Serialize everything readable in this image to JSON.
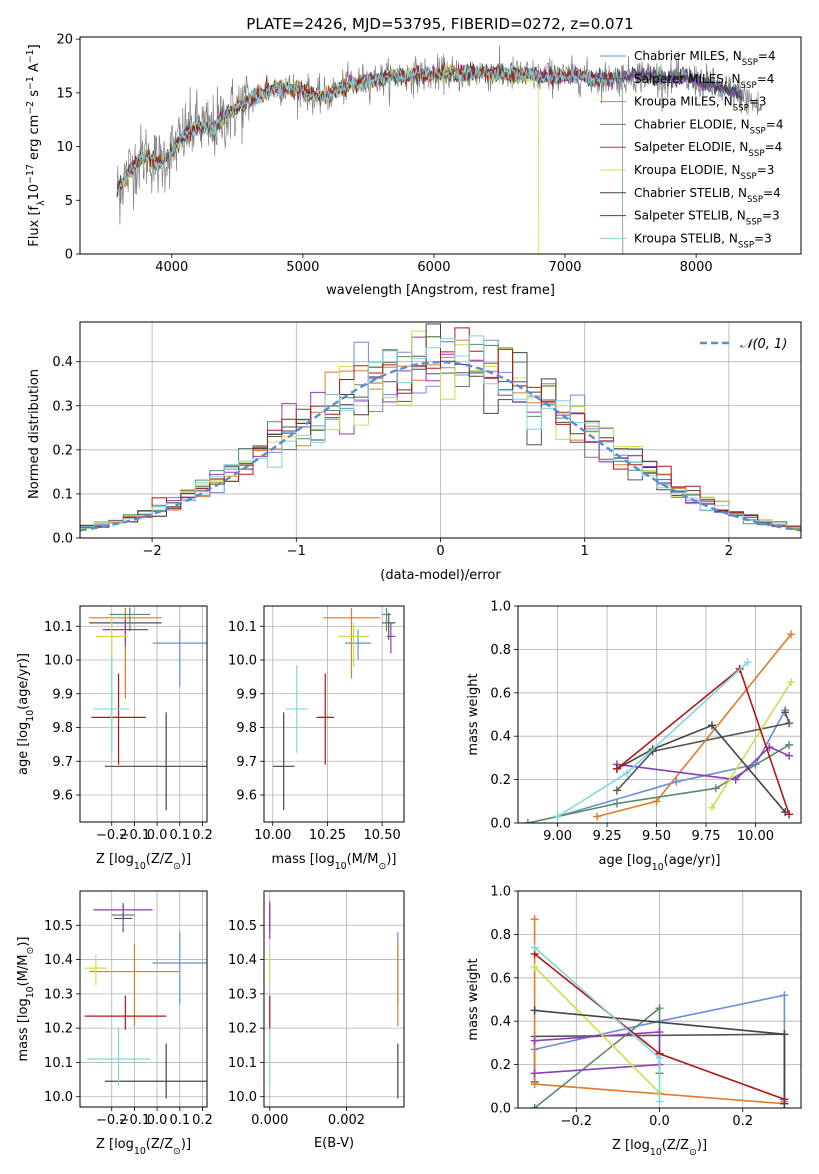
{
  "figure_title": "PLATE=2426, MJD=53795, FIBERID=0272, z=0.071",
  "models": [
    {
      "name": "Chabrier MILES, N$_{SSP}$=4",
      "label_main": "Chabrier MILES, N",
      "label_sub": "SSP",
      "label_tail": "=4",
      "color": "#6a8fd8"
    },
    {
      "name": "Salpeter MILES, N$_{SSP}$=4",
      "label_main": "Salpeter MILES, N",
      "label_sub": "SSP",
      "label_tail": "=4",
      "color": "#555555"
    },
    {
      "name": "Kroupa MILES, N$_{SSP}$=3",
      "label_main": "Kroupa MILES, N",
      "label_sub": "SSP",
      "label_tail": "=3",
      "color": "#e07b2a"
    },
    {
      "name": "Chabrier ELODIE, N$_{SSP}$=4",
      "label_main": "Chabrier ELODIE, N",
      "label_sub": "SSP",
      "label_tail": "=4",
      "color": "#5a8a6a"
    },
    {
      "name": "Salpeter ELODIE, N$_{SSP}$=4",
      "label_main": "Salpeter ELODIE, N",
      "label_sub": "SSP",
      "label_tail": "=4",
      "color": "#8e3fb5"
    },
    {
      "name": "Kroupa ELODIE, N$_{SSP}$=3",
      "label_main": "Kroupa ELODIE, N",
      "label_sub": "SSP",
      "label_tail": "=3",
      "color": "#c9e04a"
    },
    {
      "name": "Chabrier STELIB, N$_{SSP}$=4",
      "label_main": "Chabrier STELIB, N",
      "label_sub": "SSP",
      "label_tail": "=4",
      "color": "#444444"
    },
    {
      "name": "Salpeter STELIB, N$_{SSP}$=3",
      "label_main": "Salpeter STELIB, N",
      "label_sub": "SSP",
      "label_tail": "=3",
      "color": "#b01818"
    },
    {
      "name": "Kroupa STELIB, N$_{SSP}$=3",
      "label_main": "Kroupa STELIB, N",
      "label_sub": "SSP",
      "label_tail": "=3",
      "color": "#7fd6dc"
    }
  ],
  "chart_data": [
    {
      "id": "spectrum",
      "type": "line",
      "xlabel": "wavelength [Angstrom, rest frame]",
      "ylabel": "Flux [f$_\\lambda$10$^{-17}$ erg cm$^{-2}$ s$^{-1}$ A$^{-1}$]",
      "ylabel_parts": [
        "Flux [f",
        "λ",
        "10",
        "−17",
        " erg cm",
        "−2",
        " s",
        "−1",
        " A",
        "−1",
        "]"
      ],
      "xlim": [
        3300,
        8800
      ],
      "ylim": [
        0,
        20.2
      ],
      "xticks": [
        4000,
        5000,
        6000,
        7000,
        8000
      ],
      "yticks": [
        0,
        5,
        10,
        15,
        20
      ],
      "data_color": "#808080",
      "continuum": [
        [
          3580,
          5.8
        ],
        [
          3700,
          8.2
        ],
        [
          3800,
          9.2
        ],
        [
          3900,
          8.4
        ],
        [
          4000,
          9.5
        ],
        [
          4100,
          11.2
        ],
        [
          4200,
          12.0
        ],
        [
          4300,
          11.5
        ],
        [
          4400,
          12.8
        ],
        [
          4500,
          13.6
        ],
        [
          4600,
          14.4
        ],
        [
          4700,
          15.0
        ],
        [
          4800,
          15.6
        ],
        [
          4900,
          15.4
        ],
        [
          5000,
          15.3
        ],
        [
          5100,
          14.6
        ],
        [
          5200,
          14.8
        ],
        [
          5300,
          15.5
        ],
        [
          5400,
          15.9
        ],
        [
          5500,
          16.2
        ],
        [
          5600,
          16.3
        ],
        [
          5700,
          16.5
        ],
        [
          5800,
          16.6
        ],
        [
          5900,
          16.7
        ],
        [
          6000,
          16.7
        ],
        [
          6100,
          16.9
        ],
        [
          6200,
          16.7
        ],
        [
          6300,
          16.9
        ],
        [
          6400,
          16.8
        ],
        [
          6500,
          16.8
        ],
        [
          6600,
          16.7
        ],
        [
          6700,
          16.7
        ],
        [
          6800,
          16.5
        ],
        [
          6900,
          16.6
        ],
        [
          7000,
          16.4
        ],
        [
          7100,
          16.7
        ],
        [
          7200,
          16.3
        ],
        [
          7300,
          16.3
        ],
        [
          7400,
          16.4
        ],
        [
          7500,
          16.6
        ],
        [
          7600,
          16.7
        ],
        [
          7700,
          16.5
        ],
        [
          7800,
          16.3
        ],
        [
          7900,
          16.4
        ],
        [
          8000,
          16.1
        ],
        [
          8100,
          15.8
        ],
        [
          8200,
          15.4
        ],
        [
          8300,
          15.0
        ],
        [
          8400,
          14.4
        ],
        [
          8500,
          13.4
        ]
      ],
      "model_end_wavelength": [
        8350,
        8350,
        7440,
        8350,
        8350,
        6800,
        8350,
        7440,
        7440
      ],
      "legend": "right"
    },
    {
      "id": "residuals",
      "type": "step",
      "xlabel": "(data-model)/error",
      "ylabel": "Normed distribution",
      "xlim": [
        -2.5,
        2.5
      ],
      "ylim": [
        0,
        0.49
      ],
      "xticks": [
        -2,
        -1,
        0,
        1,
        2
      ],
      "xtick_labels": [
        "−2",
        "−1",
        "0",
        "1",
        "2"
      ],
      "yticks": [
        0.0,
        0.1,
        0.2,
        0.3,
        0.4
      ],
      "bin_width": 0.1,
      "bin_start": -2.5,
      "bins": 50,
      "normal_label": "$\\mathcal{N}(0,1)$",
      "normal_label_text": "𝒩(0, 1)",
      "normal_color": "#5b8bd5",
      "legend": "upper right"
    },
    {
      "id": "age_vs_Z",
      "type": "errorbar",
      "xlabel": "Z [log$_{10}$($Z/Z_\\odot$)]",
      "xlabel_parts": [
        "Z [log",
        "10",
        "(Z/Z",
        "⊙",
        ")]"
      ],
      "ylabel": "age  [log$_{10}$($age/yr$)]",
      "ylabel_parts": [
        "age  [log",
        "10",
        "(age/yr)]"
      ],
      "xlim": [
        -0.34,
        0.22
      ],
      "ylim": [
        9.52,
        10.16
      ],
      "xticks": [
        -0.2,
        -0.1,
        0.0,
        0.1,
        0.2
      ],
      "xtick_labels": [
        "−0.2",
        "−0.1",
        "0.0",
        "0.1",
        "0.2"
      ],
      "yticks": [
        9.6,
        9.7,
        9.8,
        9.9,
        10.0,
        10.1
      ],
      "points": [
        {
          "x": 0.1,
          "xerr": 0.12,
          "y": 10.05,
          "yerr": [
            0.13,
            0.04
          ]
        },
        {
          "x": -0.14,
          "xerr": 0.16,
          "y": 10.11,
          "yerr": [
            0.05,
            0.03
          ]
        },
        {
          "x": -0.14,
          "xerr": 0.16,
          "y": 10.125,
          "yerr": [
            0.24,
            0.03
          ]
        },
        {
          "x": -0.12,
          "xerr": 0.09,
          "y": 10.135,
          "yerr": [
            0.05,
            0.02
          ]
        },
        {
          "x": -0.14,
          "xerr": 0.1,
          "y": 10.09,
          "yerr": [
            0.05,
            0.03
          ]
        },
        {
          "x": -0.2,
          "xerr": 0.07,
          "y": 10.07,
          "yerr": [
            0.32,
            0.06
          ]
        },
        {
          "x": 0.04,
          "xerr": 0.27,
          "y": 9.685,
          "yerr": [
            0.13,
            0.16
          ]
        },
        {
          "x": -0.17,
          "xerr": 0.12,
          "y": 9.83,
          "yerr": [
            0.14,
            0.13
          ]
        },
        {
          "x": -0.2,
          "xerr": 0.08,
          "y": 9.855,
          "yerr": [
            0.13,
            0.16
          ]
        }
      ]
    },
    {
      "id": "age_vs_mass",
      "type": "errorbar",
      "xlabel": "mass [log$_{10}$($M/M_\\odot$)]",
      "xlabel_parts": [
        "mass [log",
        "10",
        "(M/M",
        "⊙",
        ")]"
      ],
      "ylabel": "",
      "xlim": [
        9.96,
        10.6
      ],
      "ylim": [
        9.52,
        10.16
      ],
      "xticks": [
        10.0,
        10.25,
        10.5
      ],
      "xtick_labels": [
        "10.00",
        "10.25",
        "10.50"
      ],
      "yticks": [
        9.6,
        9.7,
        9.8,
        9.9,
        10.0,
        10.1
      ],
      "points": [
        {
          "x": 10.39,
          "xerr": 0.06,
          "y": 10.05,
          "yerr": [
            0.05,
            0.04
          ]
        },
        {
          "x": 10.53,
          "xerr": 0.03,
          "y": 10.11,
          "yerr": [
            0.05,
            0.03
          ]
        },
        {
          "x": 10.36,
          "xerr": 0.13,
          "y": 10.125,
          "yerr": [
            0.18,
            0.03
          ]
        },
        {
          "x": 10.52,
          "xerr": 0.02,
          "y": 10.135,
          "yerr": [
            0.05,
            0.02
          ]
        },
        {
          "x": 10.54,
          "xerr": 0.02,
          "y": 10.07,
          "yerr": [
            0.05,
            0.04
          ]
        },
        {
          "x": 10.37,
          "xerr": 0.07,
          "y": 10.07,
          "yerr": [
            0.09,
            0.04
          ]
        },
        {
          "x": 10.05,
          "xerr": 0.05,
          "y": 9.685,
          "yerr": [
            0.13,
            0.16
          ]
        },
        {
          "x": 10.24,
          "xerr": 0.04,
          "y": 9.83,
          "yerr": [
            0.14,
            0.13
          ]
        },
        {
          "x": 10.11,
          "xerr": 0.05,
          "y": 9.855,
          "yerr": [
            0.13,
            0.13
          ]
        }
      ]
    },
    {
      "id": "mass_weight_vs_age",
      "type": "line",
      "xlabel": "age  [log$_{10}$($age/yr$)]",
      "xlabel_parts": [
        "age  [log",
        "10",
        "(age/yr)]"
      ],
      "ylabel": "mass weight",
      "xlim": [
        8.8,
        10.23
      ],
      "ylim": [
        0,
        1.0
      ],
      "xticks": [
        9.0,
        9.25,
        9.5,
        9.75,
        10.0
      ],
      "xtick_labels": [
        "9.00",
        "9.25",
        "9.50",
        "9.75",
        "10.00"
      ],
      "yticks": [
        0.0,
        0.2,
        0.4,
        0.6,
        0.8,
        1.0
      ],
      "series": [
        {
          "x": [
            9.0,
            9.6,
            10.0,
            10.15
          ],
          "y": [
            0.03,
            0.19,
            0.27,
            0.52
          ]
        },
        {
          "x": [
            9.3,
            9.48,
            10.17,
            10.15
          ],
          "y": [
            0.15,
            0.33,
            0.46,
            0.51
          ]
        },
        {
          "x": [
            9.2,
            9.5,
            10.18
          ],
          "y": [
            0.03,
            0.1,
            0.87
          ]
        },
        {
          "x": [
            8.85,
            9.3,
            9.8,
            10.17
          ],
          "y": [
            0.0,
            0.09,
            0.16,
            0.36
          ]
        },
        {
          "x": [
            9.3,
            9.9,
            10.07,
            10.17
          ],
          "y": [
            0.27,
            0.2,
            0.35,
            0.31
          ]
        },
        {
          "x": [
            9.78,
            10.18
          ],
          "y": [
            0.07,
            0.65
          ]
        },
        {
          "x": [
            9.3,
            9.48,
            9.78,
            10.15
          ],
          "y": [
            0.25,
            0.34,
            0.45,
            0.05
          ]
        },
        {
          "x": [
            9.3,
            9.92,
            10.17
          ],
          "y": [
            0.25,
            0.71,
            0.04
          ]
        },
        {
          "x": [
            9.0,
            9.35,
            9.96
          ],
          "y": [
            0.03,
            0.23,
            0.74
          ]
        }
      ]
    },
    {
      "id": "mass_vs_Z",
      "type": "errorbar",
      "xlabel": "Z [log$_{10}$($Z/Z_\\odot$)]",
      "xlabel_parts": [
        "Z [log",
        "10",
        "(Z/Z",
        "⊙",
        ")]"
      ],
      "ylabel": "mass [log$_{10}$($M/M_\\odot$)]",
      "ylabel_parts": [
        "mass [log",
        "10",
        "(M/M",
        "⊙",
        ")]"
      ],
      "xlim": [
        -0.34,
        0.22
      ],
      "ylim": [
        9.97,
        10.6
      ],
      "xticks": [
        -0.2,
        -0.1,
        0.0,
        0.1,
        0.2
      ],
      "xtick_labels": [
        "−0.2",
        "−0.1",
        "0.0",
        "0.1",
        "0.2"
      ],
      "yticks": [
        10.0,
        10.1,
        10.2,
        10.3,
        10.4,
        10.5
      ],
      "points": [
        {
          "x": 0.1,
          "xerr": 0.12,
          "y": 10.39,
          "yerr": [
            0.12,
            0.09
          ]
        },
        {
          "x": -0.15,
          "xerr": 0.04,
          "y": 10.52,
          "yerr": [
            0.04,
            0.04
          ]
        },
        {
          "x": -0.1,
          "xerr": 0.2,
          "y": 10.365,
          "yerr": [
            0.16,
            0.08
          ]
        },
        {
          "x": -0.15,
          "xerr": 0.05,
          "y": 10.53,
          "yerr": [
            0.03,
            0.03
          ]
        },
        {
          "x": -0.15,
          "xerr": 0.13,
          "y": 10.545,
          "yerr": [
            0.03,
            0.02
          ]
        },
        {
          "x": -0.27,
          "xerr": 0.05,
          "y": 10.375,
          "yerr": [
            0.05,
            0.04
          ]
        },
        {
          "x": 0.04,
          "xerr": 0.27,
          "y": 10.045,
          "yerr": [
            0.05,
            0.11
          ]
        },
        {
          "x": -0.14,
          "xerr": 0.18,
          "y": 10.235,
          "yerr": [
            0.04,
            0.06
          ]
        },
        {
          "x": -0.17,
          "xerr": 0.14,
          "y": 10.11,
          "yerr": [
            0.08,
            0.09
          ]
        }
      ]
    },
    {
      "id": "mass_vs_EBV",
      "type": "errorbar",
      "xlabel": "E(B-V)",
      "ylabel": "",
      "xlim": [
        -0.00015,
        0.0035
      ],
      "ylim": [
        9.97,
        10.6
      ],
      "xticks": [
        0.0,
        0.002
      ],
      "xtick_labels": [
        "0.000",
        "0.002"
      ],
      "yticks": [
        10.0,
        10.1,
        10.2,
        10.3,
        10.4,
        10.5
      ],
      "points": [
        {
          "x": 0.00334,
          "xerr": 0,
          "y": 10.39,
          "yerr": [
            0.12,
            0.09
          ]
        },
        {
          "x": 0.0,
          "xerr": 0,
          "y": 10.52,
          "yerr": [
            0.04,
            0.04
          ]
        },
        {
          "x": 0.00334,
          "xerr": 0,
          "y": 10.365,
          "yerr": [
            0.16,
            0.08
          ]
        },
        {
          "x": 0.0,
          "xerr": 0,
          "y": 10.53,
          "yerr": [
            0.03,
            0.03
          ]
        },
        {
          "x": 0.0,
          "xerr": 0,
          "y": 10.52,
          "yerr": [
            0.06,
            0.05
          ]
        },
        {
          "x": 0.0,
          "xerr": 0,
          "y": 10.375,
          "yerr": [
            0.05,
            0.04
          ]
        },
        {
          "x": 0.00334,
          "xerr": 0,
          "y": 10.045,
          "yerr": [
            0.05,
            0.11
          ]
        },
        {
          "x": 0.0,
          "xerr": 0,
          "y": 10.235,
          "yerr": [
            0.04,
            0.06
          ]
        },
        {
          "x": 0.0,
          "xerr": 0,
          "y": 10.11,
          "yerr": [
            0.08,
            0.09
          ]
        }
      ]
    },
    {
      "id": "mass_weight_vs_Z",
      "type": "line",
      "xlabel": "Z [log$_{10}$($Z/Z_\\odot$)]",
      "xlabel_parts": [
        "Z [log",
        "10",
        "(Z/Z",
        "⊙",
        ")]"
      ],
      "ylabel": "mass weight",
      "xlim": [
        -0.34,
        0.34
      ],
      "ylim": [
        0,
        1.0
      ],
      "xticks": [
        -0.2,
        0.0,
        0.2
      ],
      "xtick_labels": [
        "−0.2",
        "0.0",
        "0.2"
      ],
      "yticks": [
        0.0,
        0.2,
        0.4,
        0.6,
        0.8,
        1.0
      ],
      "series": [
        {
          "x": [
            -0.3,
            0.0,
            0.3,
            0.3
          ],
          "y": [
            0.27,
            0.4,
            0.52,
            0.03
          ]
        },
        {
          "x": [
            -0.3,
            -0.3,
            0.3,
            0.3
          ],
          "y": [
            0.12,
            0.33,
            0.34,
            0.02
          ]
        },
        {
          "x": [
            -0.3,
            -0.3,
            0.3
          ],
          "y": [
            0.87,
            0.11,
            0.02
          ]
        },
        {
          "x": [
            -0.3,
            0.0,
            0.0
          ],
          "y": [
            0.0,
            0.46,
            0.16
          ]
        },
        {
          "x": [
            -0.3,
            0.0,
            0.0,
            -0.3
          ],
          "y": [
            0.31,
            0.35,
            0.2,
            0.16
          ]
        },
        {
          "x": [
            -0.3,
            0.0
          ],
          "y": [
            0.65,
            0.07
          ]
        },
        {
          "x": [
            -0.3,
            0.3,
            0.3
          ],
          "y": [
            0.45,
            0.34,
            0.02
          ]
        },
        {
          "x": [
            -0.3,
            0.0,
            0.3
          ],
          "y": [
            0.71,
            0.25,
            0.04
          ]
        },
        {
          "x": [
            -0.3,
            0.0,
            0.0
          ],
          "y": [
            0.74,
            0.23,
            0.03
          ]
        }
      ]
    }
  ]
}
